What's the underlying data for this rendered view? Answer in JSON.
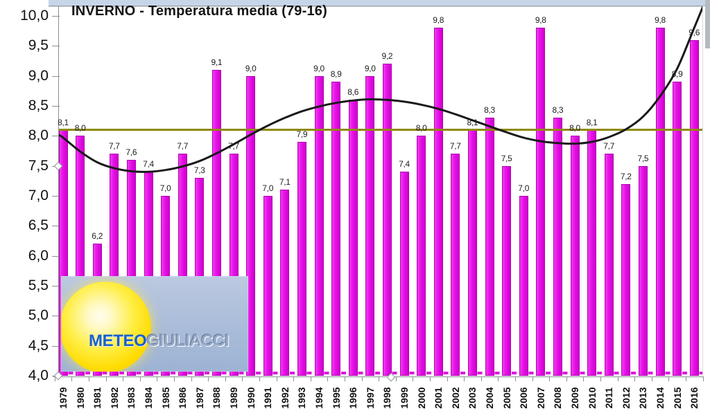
{
  "window": {
    "top_band_color": "#c7d5e9"
  },
  "logo": {
    "meteo": "METEO",
    "giuliacci": "GIULIACCI"
  },
  "chart_data": {
    "type": "bar",
    "title": "INVERNO - Temperatura media (79-16)",
    "xlabel": "",
    "ylabel": "",
    "ylim": [
      4.0,
      10.0
    ],
    "ytick_step": 0.5,
    "ytick_labels": [
      "10,0",
      "9,5",
      "9,0",
      "8,5",
      "8,0",
      "7,5",
      "7,0",
      "6,5",
      "6,0",
      "5,5",
      "5,0",
      "4,5",
      "4,0"
    ],
    "grid": false,
    "legend": false,
    "bar_color": "#e611e6",
    "categories": [
      1979,
      1980,
      1981,
      1982,
      1983,
      1984,
      1985,
      1986,
      1987,
      1988,
      1989,
      1990,
      1991,
      1992,
      1993,
      1994,
      1995,
      1996,
      1997,
      1998,
      1999,
      2000,
      2001,
      2002,
      2003,
      2004,
      2005,
      2006,
      2007,
      2008,
      2009,
      2010,
      2011,
      2012,
      2013,
      2014,
      2015,
      2016
    ],
    "values": [
      8.1,
      8.0,
      6.2,
      7.7,
      7.6,
      7.4,
      7.0,
      7.7,
      7.3,
      9.1,
      7.7,
      9.0,
      7.0,
      7.1,
      7.9,
      9.0,
      8.9,
      8.6,
      9.0,
      9.2,
      7.4,
      8.0,
      9.8,
      7.7,
      8.1,
      8.3,
      7.5,
      7.0,
      9.8,
      8.3,
      8.0,
      8.1,
      7.7,
      7.2,
      7.5,
      9.8,
      8.9,
      9.6
    ],
    "value_labels": [
      "8,1",
      "8,0",
      "6,2",
      "7,7",
      "7,6",
      "7,4",
      "7,0",
      "7,7",
      "7,3",
      "9,1",
      "7,7",
      "9,0",
      "7,0",
      "7,1",
      "7,9",
      "9,0",
      "8,9",
      "8,6",
      "9,0",
      "9,2",
      "7,4",
      "8,0",
      "9,8",
      "7,7",
      "8,1",
      "8,3",
      "7,5",
      "7,0",
      "9,8",
      "8,3",
      "8,0",
      "8,1",
      "7,7",
      "7,2",
      "7,5",
      "9,8",
      "8,9",
      "9,6"
    ],
    "mean_line": {
      "value": 8.1,
      "color": "#8f8a06"
    },
    "dashed_baseline": {
      "value": 4.05,
      "color": "#dc1adc"
    },
    "trend_line": {
      "color": "#1a1a1a",
      "x": [
        1978.72,
        1979,
        1980,
        1981,
        1982,
        1983,
        1984,
        1985,
        1986,
        1987,
        1988,
        1989,
        1990,
        1991,
        1992,
        1993,
        1994,
        1995,
        1996,
        1997,
        1998,
        1999,
        2000,
        2001,
        2002,
        2003,
        2004,
        2005,
        2006,
        2007,
        2008,
        2009,
        2010,
        2011,
        2012,
        2013,
        2014,
        2015,
        2016,
        2016.55
      ],
      "y": [
        8.02,
        7.97,
        7.74,
        7.56,
        7.46,
        7.41,
        7.4,
        7.43,
        7.49,
        7.58,
        7.71,
        7.86,
        8.02,
        8.17,
        8.3,
        8.41,
        8.49,
        8.55,
        8.59,
        8.61,
        8.6,
        8.57,
        8.52,
        8.45,
        8.36,
        8.26,
        8.16,
        8.06,
        7.97,
        7.91,
        7.88,
        7.87,
        7.9,
        7.98,
        8.11,
        8.32,
        8.66,
        9.12,
        9.8,
        10.18
      ]
    }
  }
}
